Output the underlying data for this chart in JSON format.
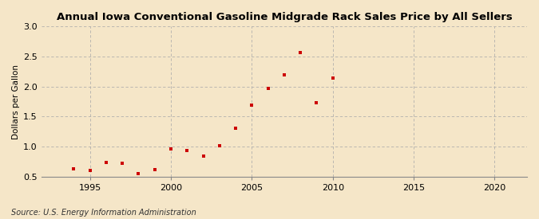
{
  "title": "Annual Iowa Conventional Gasoline Midgrade Rack Sales Price by All Sellers",
  "ylabel": "Dollars per Gallon",
  "source": "Source: U.S. Energy Information Administration",
  "figure_bg": "#f5e6c8",
  "axes_bg": "#f5e6c8",
  "marker_color": "#cc0000",
  "years": [
    1994,
    1995,
    1996,
    1997,
    1998,
    1999,
    2000,
    2001,
    2002,
    2003,
    2004,
    2005,
    2006,
    2007,
    2008,
    2009,
    2010
  ],
  "values": [
    0.63,
    0.6,
    0.73,
    0.72,
    0.55,
    0.62,
    0.96,
    0.93,
    0.84,
    1.01,
    1.3,
    1.69,
    1.97,
    2.2,
    2.56,
    1.73,
    2.14
  ],
  "xlim": [
    1992,
    2022
  ],
  "ylim": [
    0.5,
    3.0
  ],
  "yticks": [
    0.5,
    1.0,
    1.5,
    2.0,
    2.5,
    3.0
  ],
  "xticks": [
    1995,
    2000,
    2005,
    2010,
    2015,
    2020
  ],
  "grid_color": "#aaaaaa",
  "title_fontsize": 9.5,
  "ylabel_fontsize": 7.5,
  "tick_fontsize": 8,
  "source_fontsize": 7
}
